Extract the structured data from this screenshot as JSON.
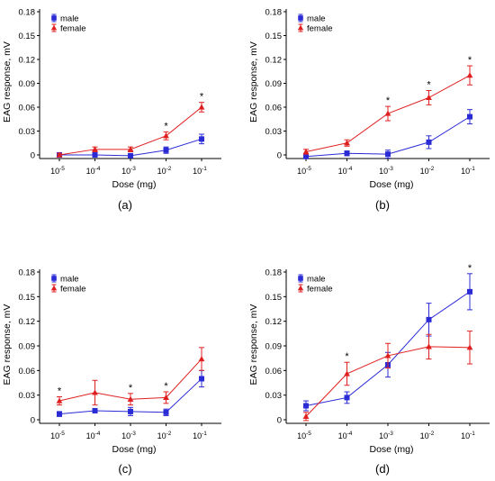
{
  "colors": {
    "male": "#2b2bd6",
    "female": "#e02020",
    "axis": "#000000",
    "err_male": "#2b2bd6",
    "err_female": "#e02020"
  },
  "chart_data": [
    {
      "panel": "(a)",
      "type": "line",
      "categories": [
        "10-5",
        "10-4",
        "10-3",
        "10-2",
        "10-1"
      ],
      "tick_labels": [
        {
          "base": "10",
          "exp": "-5"
        },
        {
          "base": "10",
          "exp": "-4"
        },
        {
          "base": "10",
          "exp": "-3"
        },
        {
          "base": "10",
          "exp": "-2"
        },
        {
          "base": "10",
          "exp": "-1"
        }
      ],
      "xlabel": "Dose (mg)",
      "ylabel": "EAG response, mV",
      "ylim": [
        0,
        0.18
      ],
      "yticks": [
        "0",
        "0.03",
        "0.06",
        "0.09",
        "0.12",
        "0.15",
        "0.18"
      ],
      "legend": "top-left",
      "series": [
        {
          "name": "male",
          "marker": "square",
          "values": [
            0.0,
            0.0,
            -0.001,
            0.006,
            0.02
          ],
          "errors": [
            0.002,
            0.002,
            0.002,
            0.004,
            0.006
          ]
        },
        {
          "name": "female",
          "marker": "triangle",
          "values": [
            0.0,
            0.007,
            0.007,
            0.024,
            0.06
          ],
          "errors": [
            0.002,
            0.003,
            0.003,
            0.005,
            0.006
          ]
        }
      ],
      "significance": [
        false,
        false,
        false,
        true,
        true
      ],
      "significance_mark": "*"
    },
    {
      "panel": "(b)",
      "type": "line",
      "categories": [
        "10-5",
        "10-4",
        "10-3",
        "10-2",
        "10-1"
      ],
      "tick_labels": [
        {
          "base": "10",
          "exp": "-5"
        },
        {
          "base": "10",
          "exp": "-4"
        },
        {
          "base": "10",
          "exp": "-3"
        },
        {
          "base": "10",
          "exp": "-2"
        },
        {
          "base": "10",
          "exp": "-1"
        }
      ],
      "xlabel": "Dose (mg)",
      "ylabel": "EAG response, mV",
      "ylim": [
        0,
        0.18
      ],
      "yticks": [
        "0",
        "0.03",
        "0.06",
        "0.09",
        "0.12",
        "0.15",
        "0.18"
      ],
      "legend": "top-left",
      "series": [
        {
          "name": "male",
          "marker": "square",
          "values": [
            -0.002,
            0.002,
            0.001,
            0.016,
            0.048
          ],
          "errors": [
            0.002,
            0.003,
            0.005,
            0.008,
            0.009
          ]
        },
        {
          "name": "female",
          "marker": "triangle",
          "values": [
            0.004,
            0.015,
            0.052,
            0.072,
            0.1
          ],
          "errors": [
            0.003,
            0.004,
            0.009,
            0.009,
            0.012
          ]
        }
      ],
      "significance": [
        false,
        false,
        true,
        true,
        true
      ],
      "significance_mark": "*"
    },
    {
      "panel": "(c)",
      "type": "line",
      "categories": [
        "10-5",
        "10-4",
        "10-3",
        "10-2",
        "10-1"
      ],
      "tick_labels": [
        {
          "base": "10",
          "exp": "-5"
        },
        {
          "base": "10",
          "exp": "-4"
        },
        {
          "base": "10",
          "exp": "-3"
        },
        {
          "base": "10",
          "exp": "-2"
        },
        {
          "base": "10",
          "exp": "-1"
        }
      ],
      "xlabel": "Dose (mg)",
      "ylabel": "EAG response, mV",
      "ylim": [
        0,
        0.18
      ],
      "yticks": [
        "0",
        "0.03",
        "0.06",
        "0.09",
        "0.12",
        "0.15",
        "0.18"
      ],
      "legend": "top-left",
      "series": [
        {
          "name": "male",
          "marker": "square",
          "values": [
            0.007,
            0.011,
            0.01,
            0.009,
            0.05
          ],
          "errors": [
            0.003,
            0.002,
            0.005,
            0.004,
            0.01
          ]
        },
        {
          "name": "female",
          "marker": "triangle",
          "values": [
            0.023,
            0.033,
            0.025,
            0.027,
            0.074
          ],
          "errors": [
            0.005,
            0.015,
            0.007,
            0.007,
            0.014
          ]
        }
      ],
      "significance": [
        true,
        false,
        true,
        true,
        false
      ],
      "significance_mark": "*"
    },
    {
      "panel": "(d)",
      "type": "line",
      "categories": [
        "10-5",
        "10-4",
        "10-3",
        "10-2",
        "10-1"
      ],
      "tick_labels": [
        {
          "base": "10",
          "exp": "-5"
        },
        {
          "base": "10",
          "exp": "-4"
        },
        {
          "base": "10",
          "exp": "-3"
        },
        {
          "base": "10",
          "exp": "-2"
        },
        {
          "base": "10",
          "exp": "-1"
        }
      ],
      "xlabel": "Dose (mg)",
      "ylabel": "EAG response, mV",
      "ylim": [
        0,
        0.18
      ],
      "yticks": [
        "0",
        "0.03",
        "0.06",
        "0.09",
        "0.12",
        "0.15",
        "0.18"
      ],
      "legend": "top-left",
      "series": [
        {
          "name": "male",
          "marker": "square",
          "values": [
            0.017,
            0.027,
            0.067,
            0.122,
            0.156
          ],
          "errors": [
            0.006,
            0.007,
            0.015,
            0.02,
            0.022
          ]
        },
        {
          "name": "female",
          "marker": "triangle",
          "values": [
            0.004,
            0.056,
            0.078,
            0.089,
            0.088
          ],
          "errors": [
            0.005,
            0.014,
            0.015,
            0.015,
            0.02
          ]
        }
      ],
      "significance": [
        false,
        true,
        false,
        false,
        true
      ],
      "significance_mark": "*"
    }
  ]
}
